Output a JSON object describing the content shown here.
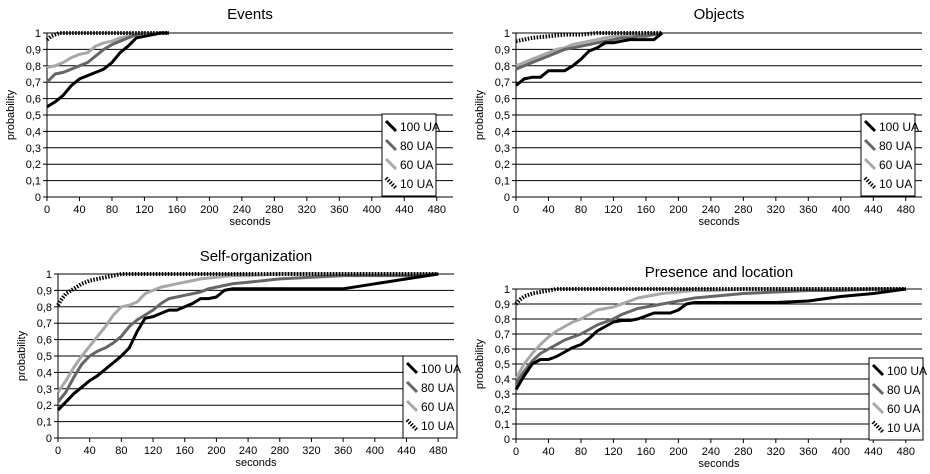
{
  "chart_data": [
    {
      "type": "line",
      "title": "Events",
      "xlabel": "seconds",
      "ylabel": "probability",
      "xlim": [
        0,
        500
      ],
      "ylim": [
        0,
        1
      ],
      "xticks": [
        "0",
        "40",
        "80",
        "120",
        "160",
        "200",
        "240",
        "280",
        "320",
        "360",
        "400",
        "440",
        "480"
      ],
      "yticks": [
        "0",
        "0,1",
        "0,2",
        "0,3",
        "0,4",
        "0,5",
        "0,6",
        "0,7",
        "0,8",
        "0,9",
        "1"
      ],
      "grid": "horizontal",
      "legend_position": "right",
      "series": [
        {
          "name": "100 UA",
          "color": "#000000",
          "dash": "solid",
          "x": [
            0,
            10,
            20,
            30,
            40,
            50,
            60,
            70,
            80,
            90,
            100,
            110,
            120,
            130,
            140,
            150
          ],
          "y": [
            0.55,
            0.58,
            0.62,
            0.68,
            0.72,
            0.74,
            0.76,
            0.78,
            0.82,
            0.88,
            0.92,
            0.97,
            0.98,
            0.99,
            1.0,
            1.0
          ]
        },
        {
          "name": "80 UA",
          "color": "#666666",
          "dash": "solid",
          "x": [
            0,
            10,
            20,
            30,
            40,
            50,
            60,
            70,
            80,
            90,
            100,
            110,
            120
          ],
          "y": [
            0.7,
            0.75,
            0.76,
            0.78,
            0.8,
            0.82,
            0.86,
            0.9,
            0.93,
            0.95,
            0.97,
            0.99,
            1.0
          ]
        },
        {
          "name": "60 UA",
          "color": "#a8a8a8",
          "dash": "solid",
          "x": [
            0,
            10,
            20,
            30,
            40,
            50,
            60,
            70,
            80,
            90,
            100,
            110
          ],
          "y": [
            0.79,
            0.8,
            0.82,
            0.85,
            0.87,
            0.88,
            0.92,
            0.94,
            0.95,
            0.97,
            0.98,
            1.0
          ]
        },
        {
          "name": "10 UA",
          "color": "#000000",
          "dash": "dotted",
          "x": [
            0,
            5,
            10,
            15,
            20,
            30,
            40,
            60,
            80,
            100,
            120,
            140,
            150
          ],
          "y": [
            0.96,
            0.98,
            0.99,
            1.0,
            1.0,
            1.0,
            1.0,
            1.0,
            1.0,
            1.0,
            1.0,
            1.0,
            1.0
          ]
        }
      ]
    },
    {
      "type": "line",
      "title": "Objects",
      "xlabel": "seconds",
      "ylabel": "probability",
      "xlim": [
        0,
        500
      ],
      "ylim": [
        0,
        1
      ],
      "xticks": [
        "0",
        "40",
        "80",
        "120",
        "160",
        "200",
        "240",
        "280",
        "320",
        "360",
        "400",
        "440",
        "480"
      ],
      "yticks": [
        "0",
        "0,1",
        "0,2",
        "0,3",
        "0,4",
        "0,5",
        "0,6",
        "0,7",
        "0,8",
        "0,9",
        "1"
      ],
      "grid": "horizontal",
      "legend_position": "right",
      "series": [
        {
          "name": "100 UA",
          "color": "#000000",
          "dash": "solid",
          "x": [
            0,
            10,
            20,
            30,
            40,
            50,
            60,
            70,
            80,
            90,
            100,
            110,
            120,
            130,
            140,
            150,
            160,
            170,
            180
          ],
          "y": [
            0.68,
            0.72,
            0.73,
            0.73,
            0.77,
            0.77,
            0.77,
            0.8,
            0.84,
            0.89,
            0.91,
            0.94,
            0.94,
            0.95,
            0.96,
            0.96,
            0.96,
            0.96,
            1.0
          ]
        },
        {
          "name": "80 UA",
          "color": "#666666",
          "dash": "solid",
          "x": [
            0,
            10,
            20,
            30,
            40,
            50,
            60,
            70,
            80,
            90,
            100,
            110,
            120,
            130,
            140,
            150,
            160,
            170,
            180
          ],
          "y": [
            0.78,
            0.8,
            0.82,
            0.84,
            0.86,
            0.88,
            0.9,
            0.91,
            0.92,
            0.93,
            0.94,
            0.95,
            0.96,
            0.97,
            0.97,
            0.98,
            0.98,
            0.99,
            1.0
          ]
        },
        {
          "name": "60 UA",
          "color": "#a8a8a8",
          "dash": "solid",
          "x": [
            0,
            10,
            20,
            30,
            40,
            50,
            60,
            70,
            80,
            90,
            100,
            110,
            120,
            130,
            140,
            150,
            160
          ],
          "y": [
            0.8,
            0.82,
            0.84,
            0.86,
            0.88,
            0.9,
            0.91,
            0.93,
            0.94,
            0.95,
            0.96,
            0.97,
            0.98,
            0.98,
            0.99,
            0.99,
            1.0
          ]
        },
        {
          "name": "10 UA",
          "color": "#000000",
          "dash": "dotted",
          "x": [
            0,
            10,
            20,
            40,
            60,
            80,
            100,
            120,
            140,
            160,
            180
          ],
          "y": [
            0.95,
            0.96,
            0.97,
            0.98,
            0.99,
            0.99,
            1.0,
            1.0,
            1.0,
            1.0,
            1.0
          ]
        }
      ]
    },
    {
      "type": "line",
      "title": "Self-organization",
      "xlabel": "seconds",
      "ylabel": "probability",
      "xlim": [
        0,
        500
      ],
      "ylim": [
        0,
        1
      ],
      "xticks": [
        "0",
        "40",
        "80",
        "120",
        "160",
        "200",
        "240",
        "280",
        "320",
        "360",
        "400",
        "440",
        "480"
      ],
      "yticks": [
        "0",
        "0,1",
        "0,2",
        "0,3",
        "0,4",
        "0,5",
        "0,6",
        "0,7",
        "0,8",
        "0,9",
        "1"
      ],
      "grid": "horizontal",
      "legend_position": "right",
      "series": [
        {
          "name": "100 UA",
          "color": "#000000",
          "dash": "solid",
          "x": [
            0,
            10,
            20,
            30,
            40,
            50,
            60,
            70,
            80,
            90,
            100,
            110,
            120,
            130,
            140,
            150,
            160,
            170,
            180,
            190,
            200,
            210,
            220,
            240,
            280,
            320,
            360,
            400,
            440,
            480
          ],
          "y": [
            0.17,
            0.22,
            0.27,
            0.31,
            0.35,
            0.38,
            0.42,
            0.46,
            0.5,
            0.55,
            0.65,
            0.73,
            0.74,
            0.76,
            0.78,
            0.78,
            0.8,
            0.82,
            0.85,
            0.85,
            0.86,
            0.9,
            0.91,
            0.91,
            0.91,
            0.91,
            0.91,
            0.94,
            0.97,
            1.0
          ]
        },
        {
          "name": "80 UA",
          "color": "#666666",
          "dash": "solid",
          "x": [
            0,
            10,
            20,
            30,
            40,
            50,
            60,
            70,
            80,
            90,
            100,
            110,
            120,
            130,
            140,
            150,
            160,
            170,
            180,
            190,
            200,
            220,
            240,
            260,
            280,
            320,
            360,
            400,
            440,
            480
          ],
          "y": [
            0.22,
            0.28,
            0.37,
            0.45,
            0.5,
            0.53,
            0.55,
            0.58,
            0.62,
            0.68,
            0.72,
            0.75,
            0.78,
            0.82,
            0.85,
            0.86,
            0.87,
            0.88,
            0.89,
            0.91,
            0.92,
            0.94,
            0.95,
            0.96,
            0.97,
            0.98,
            0.99,
            0.99,
            0.99,
            1.0
          ]
        },
        {
          "name": "60 UA",
          "color": "#a8a8a8",
          "dash": "solid",
          "x": [
            0,
            10,
            20,
            30,
            40,
            50,
            60,
            70,
            80,
            90,
            100,
            110,
            120,
            130,
            140,
            150,
            160,
            170,
            180,
            200,
            220,
            240,
            280,
            320,
            400,
            480
          ],
          "y": [
            0.28,
            0.35,
            0.43,
            0.5,
            0.56,
            0.62,
            0.68,
            0.75,
            0.8,
            0.81,
            0.83,
            0.88,
            0.9,
            0.92,
            0.93,
            0.94,
            0.95,
            0.96,
            0.97,
            0.98,
            0.99,
            0.99,
            1.0,
            1.0,
            1.0,
            1.0
          ]
        },
        {
          "name": "10 UA",
          "color": "#000000",
          "dash": "dotted",
          "x": [
            0,
            5,
            10,
            20,
            30,
            40,
            50,
            60,
            70,
            80,
            90,
            100,
            120,
            160,
            200,
            280,
            360,
            440,
            480
          ],
          "y": [
            0.81,
            0.85,
            0.88,
            0.91,
            0.94,
            0.96,
            0.97,
            0.98,
            0.99,
            1.0,
            1.0,
            1.0,
            1.0,
            1.0,
            1.0,
            1.0,
            1.0,
            1.0,
            1.0
          ]
        }
      ]
    },
    {
      "type": "line",
      "title": "Presence and location",
      "xlabel": "seconds",
      "ylabel": "probability",
      "xlim": [
        0,
        500
      ],
      "ylim": [
        0,
        1
      ],
      "xticks": [
        "0",
        "40",
        "80",
        "120",
        "160",
        "200",
        "240",
        "280",
        "320",
        "360",
        "400",
        "440",
        "480"
      ],
      "yticks": [
        "0",
        "0,1",
        "0,2",
        "0,3",
        "0,4",
        "0,5",
        "0,6",
        "0,7",
        "0,8",
        "0,9",
        "1"
      ],
      "grid": "horizontal",
      "legend_position": "right",
      "series": [
        {
          "name": "100 UA",
          "color": "#000000",
          "dash": "solid",
          "x": [
            0,
            10,
            20,
            30,
            40,
            50,
            60,
            70,
            80,
            90,
            100,
            110,
            120,
            130,
            140,
            150,
            160,
            170,
            180,
            190,
            200,
            210,
            220,
            240,
            280,
            320,
            360,
            400,
            440,
            480
          ],
          "y": [
            0.33,
            0.42,
            0.5,
            0.53,
            0.53,
            0.55,
            0.58,
            0.61,
            0.63,
            0.67,
            0.72,
            0.75,
            0.78,
            0.79,
            0.79,
            0.8,
            0.82,
            0.84,
            0.84,
            0.84,
            0.86,
            0.9,
            0.91,
            0.91,
            0.91,
            0.91,
            0.92,
            0.95,
            0.97,
            1.0
          ]
        },
        {
          "name": "80 UA",
          "color": "#666666",
          "dash": "solid",
          "x": [
            0,
            10,
            20,
            30,
            40,
            50,
            60,
            70,
            80,
            90,
            100,
            110,
            120,
            130,
            140,
            150,
            160,
            180,
            200,
            220,
            240,
            260,
            280,
            320,
            360,
            400,
            440,
            480
          ],
          "y": [
            0.37,
            0.45,
            0.52,
            0.57,
            0.6,
            0.63,
            0.66,
            0.68,
            0.7,
            0.73,
            0.76,
            0.78,
            0.8,
            0.83,
            0.85,
            0.87,
            0.88,
            0.9,
            0.92,
            0.94,
            0.95,
            0.96,
            0.97,
            0.98,
            0.99,
            0.99,
            1.0,
            1.0
          ]
        },
        {
          "name": "60 UA",
          "color": "#a8a8a8",
          "dash": "solid",
          "x": [
            0,
            10,
            20,
            30,
            40,
            50,
            60,
            70,
            80,
            90,
            100,
            110,
            120,
            130,
            140,
            150,
            160,
            180,
            200,
            220,
            240,
            280,
            320,
            400,
            480
          ],
          "y": [
            0.4,
            0.5,
            0.57,
            0.63,
            0.68,
            0.72,
            0.75,
            0.78,
            0.8,
            0.83,
            0.86,
            0.87,
            0.88,
            0.9,
            0.92,
            0.94,
            0.95,
            0.97,
            0.98,
            0.99,
            0.99,
            1.0,
            1.0,
            1.0,
            1.0
          ]
        },
        {
          "name": "10 UA",
          "color": "#000000",
          "dash": "dotted",
          "x": [
            0,
            5,
            10,
            20,
            30,
            40,
            50,
            60,
            80,
            100,
            160,
            240,
            320,
            400,
            480
          ],
          "y": [
            0.9,
            0.93,
            0.95,
            0.97,
            0.98,
            0.99,
            1.0,
            1.0,
            1.0,
            1.0,
            1.0,
            1.0,
            1.0,
            1.0,
            1.0
          ]
        }
      ]
    }
  ]
}
